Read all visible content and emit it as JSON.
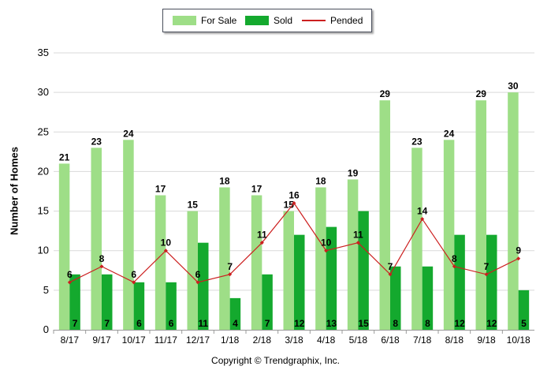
{
  "chart_data": {
    "type": "bar",
    "categories": [
      "8/17",
      "9/17",
      "10/17",
      "11/17",
      "12/17",
      "1/18",
      "2/18",
      "3/18",
      "4/18",
      "5/18",
      "6/18",
      "7/18",
      "8/18",
      "9/18",
      "10/18"
    ],
    "series": [
      {
        "name": "For Sale",
        "type": "bar",
        "color": "#9ede87",
        "values": [
          21,
          23,
          24,
          17,
          15,
          18,
          17,
          15,
          18,
          19,
          29,
          23,
          24,
          29,
          30
        ]
      },
      {
        "name": "Sold",
        "type": "bar",
        "color": "#14a92e",
        "values": [
          7,
          7,
          6,
          6,
          11,
          4,
          7,
          12,
          13,
          15,
          8,
          8,
          12,
          12,
          5
        ]
      },
      {
        "name": "Pended",
        "type": "line",
        "color": "#cc1f1f",
        "values": [
          6,
          8,
          6,
          10,
          6,
          7,
          11,
          16,
          10,
          11,
          7,
          14,
          8,
          7,
          9
        ]
      }
    ],
    "ylabel": "Number of Homes",
    "xlabel": "",
    "ylim": [
      0,
      35
    ],
    "yticks": [
      0,
      5,
      10,
      15,
      20,
      25,
      30,
      35
    ],
    "grid": true,
    "legend_position": "top-center"
  },
  "legend": {
    "for_sale": "For Sale",
    "sold": "Sold",
    "pended": "Pended"
  },
  "footer": "Copyright © Trendgraphix, Inc."
}
